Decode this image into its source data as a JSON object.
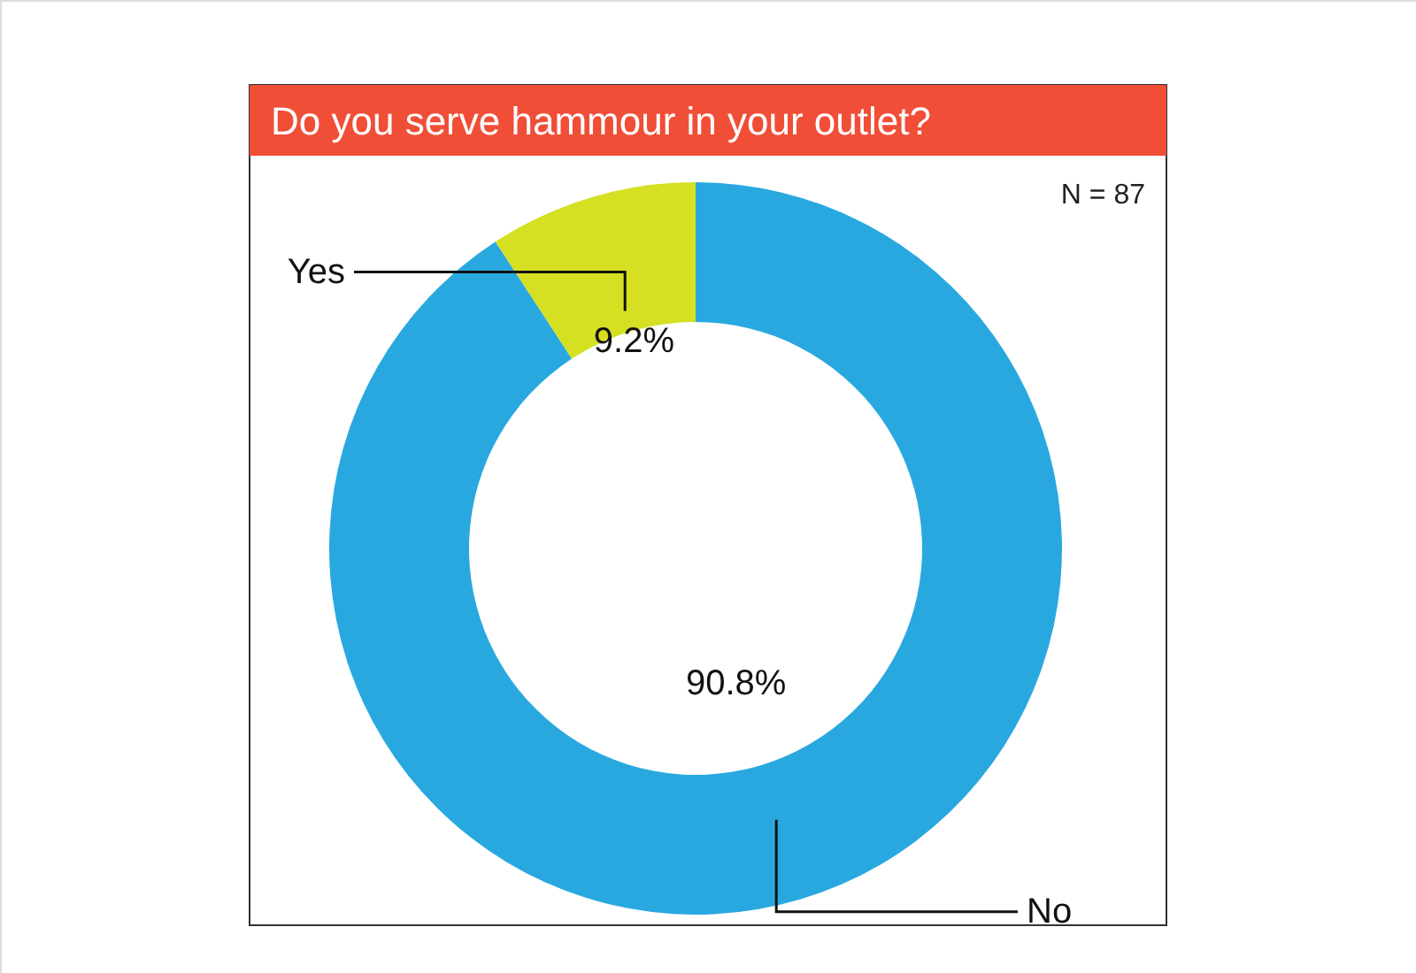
{
  "chart_data": {
    "type": "donut",
    "title": "Do you serve hammour in your outlet?",
    "categories": [
      "Yes",
      "No"
    ],
    "values": [
      9.2,
      90.8
    ],
    "colors": [
      "#d4e021",
      "#29a8e0"
    ],
    "value_labels": [
      "9.2%",
      "90.8%"
    ],
    "annotations": [
      "N = 87"
    ]
  }
}
